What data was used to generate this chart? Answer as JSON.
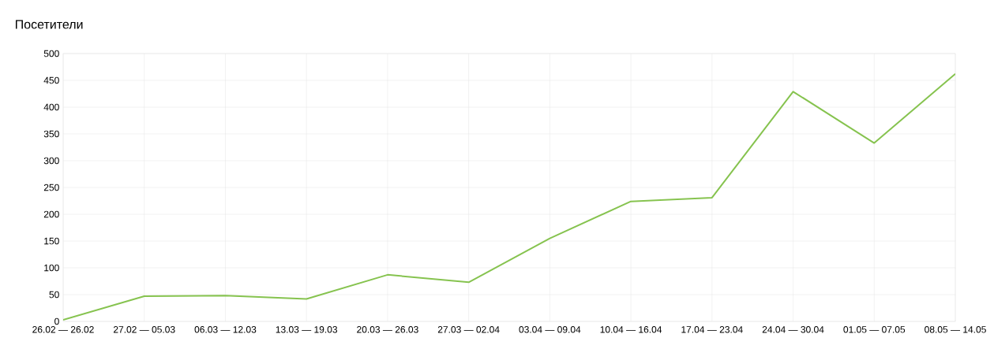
{
  "chart_data": {
    "type": "line",
    "title": "Посетители",
    "categories": [
      "26.02 — 26.02",
      "27.02 — 05.03",
      "06.03 — 12.03",
      "13.03 — 19.03",
      "20.03 — 26.03",
      "27.03 — 02.04",
      "03.04 — 09.04",
      "10.04 — 16.04",
      "17.04 — 23.04",
      "24.04 — 30.04",
      "01.05 — 07.05",
      "08.05 — 14.05"
    ],
    "values": [
      3,
      47,
      48,
      42,
      87,
      73,
      155,
      224,
      231,
      429,
      333,
      462
    ],
    "color": "#86c34f",
    "ylim": [
      0,
      500
    ],
    "yticks": [
      0,
      50,
      100,
      150,
      200,
      250,
      300,
      350,
      400,
      450,
      500
    ],
    "grid": true
  }
}
